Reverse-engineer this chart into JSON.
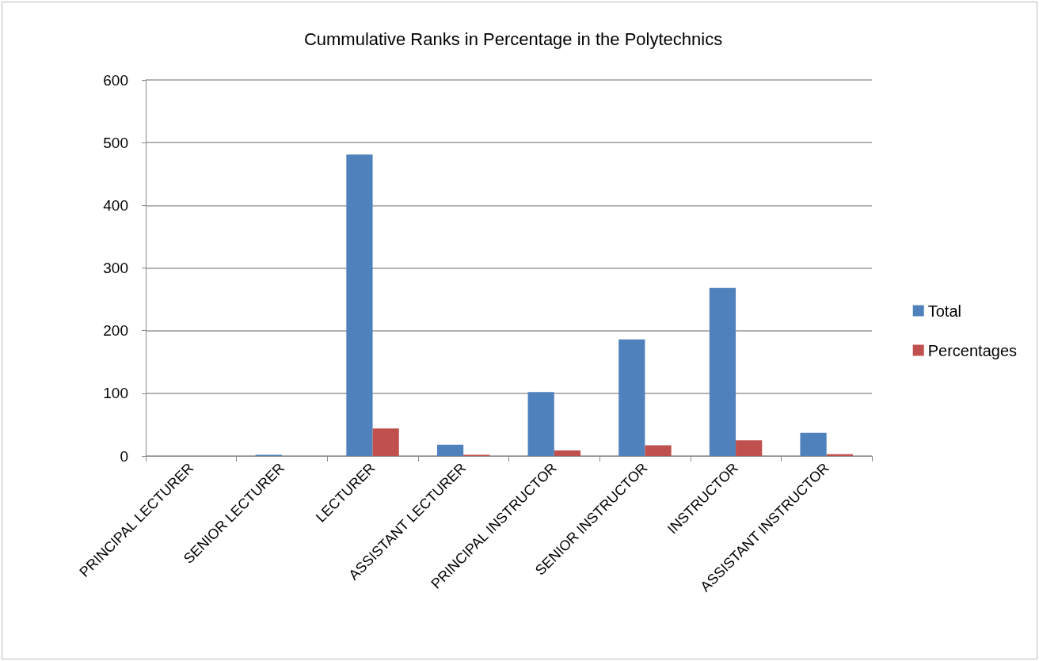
{
  "chart_data": {
    "type": "bar",
    "title": "Cummulative Ranks in Percentage in the Polytechnics",
    "categories": [
      "PRINCIPAL LECTURER",
      "SENIOR LECTURER",
      "LECTURER",
      "ASSISTANT LECTURER",
      "PRINCIPAL INSTRUCTOR",
      "SENIOR INSTRUCTOR",
      "INSTRUCTOR",
      "ASSISTANT INSTRUCTOR"
    ],
    "series": [
      {
        "name": "Total",
        "color": "#4f81bd",
        "values": [
          0,
          2,
          481,
          18,
          102,
          186,
          268,
          37
        ]
      },
      {
        "name": "Percentages",
        "color": "#c0504d",
        "values": [
          0,
          0,
          44,
          2,
          9,
          17,
          25,
          3
        ]
      }
    ],
    "ylim": [
      0,
      600
    ],
    "yticks": [
      0,
      100,
      200,
      300,
      400,
      500,
      600
    ],
    "grid": "y",
    "legend": "right"
  }
}
